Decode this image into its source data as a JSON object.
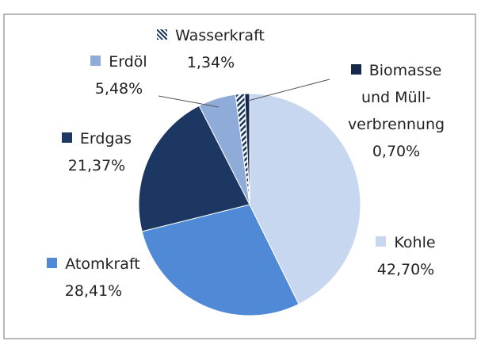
{
  "chart_data": {
    "type": "pie",
    "categories": [
      "Kohle",
      "Atomkraft",
      "Erdgas",
      "Erdöl",
      "Wasserkraft",
      "Biomasse und Müll-verbrennung"
    ],
    "values": [
      42.7,
      28.41,
      21.37,
      5.48,
      1.34,
      0.7
    ],
    "value_labels": [
      "42,70%",
      "28,41%",
      "21,37%",
      "5,48%",
      "1,34%",
      "0,70%"
    ],
    "colors": [
      "#c6d7ef",
      "#5089d6",
      "#1c3862",
      "#8facd8",
      "hatch",
      "#17294a"
    ]
  }
}
